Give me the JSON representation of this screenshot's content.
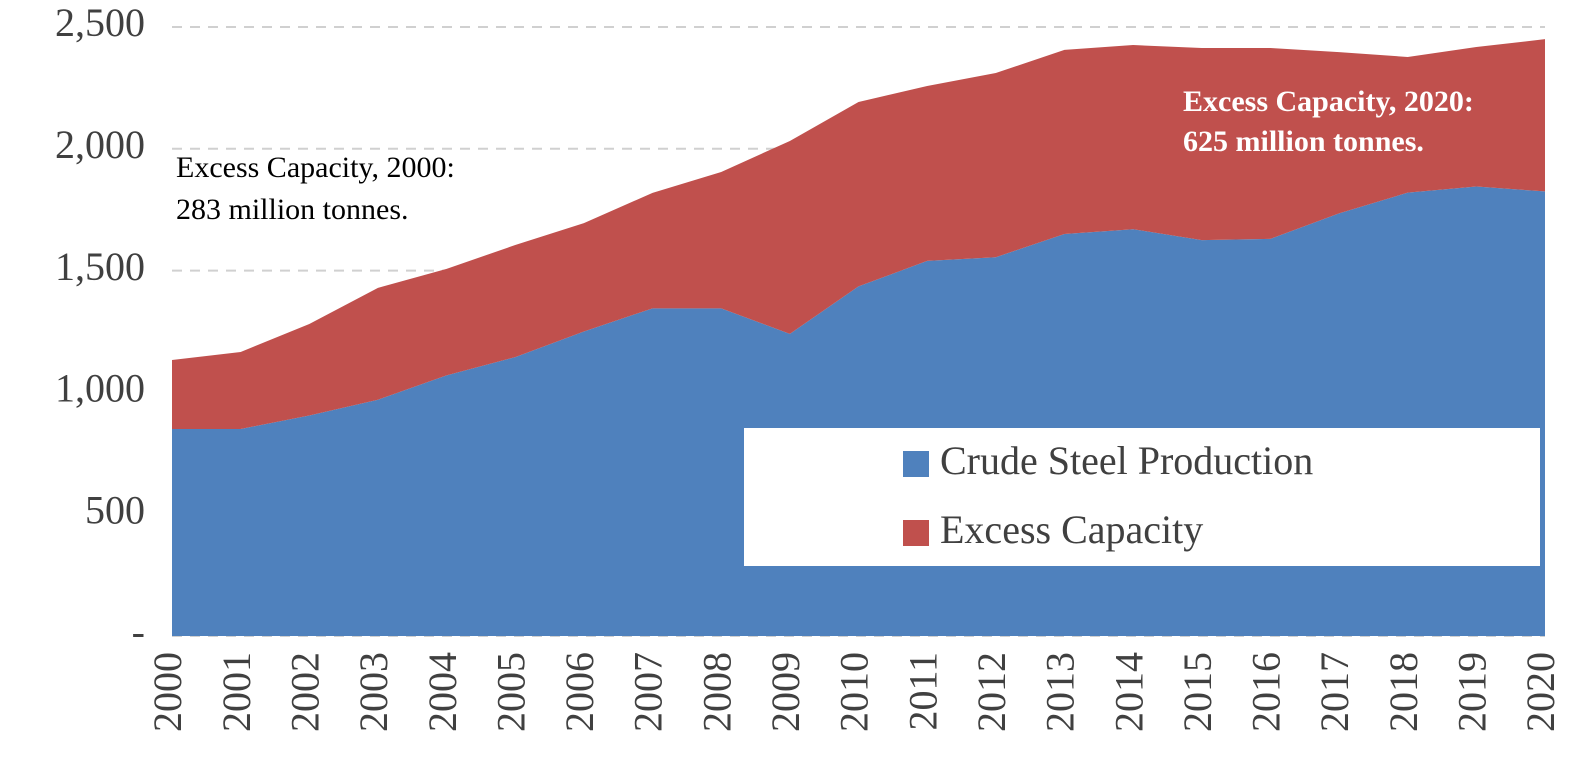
{
  "chart_data": {
    "type": "stacked_area",
    "categories": [
      "2000",
      "2001",
      "2002",
      "2003",
      "2004",
      "2005",
      "2006",
      "2007",
      "2008",
      "2009",
      "2010",
      "2011",
      "2012",
      "2013",
      "2014",
      "2015",
      "2016",
      "2017",
      "2018",
      "2019",
      "2020"
    ],
    "series": [
      {
        "name": "Crude Steel Production",
        "color": "#4f81bd",
        "values": [
          850,
          850,
          905,
          970,
          1070,
          1145,
          1250,
          1345,
          1345,
          1240,
          1435,
          1540,
          1555,
          1650,
          1670,
          1625,
          1630,
          1735,
          1820,
          1845,
          1825
        ]
      },
      {
        "name": "Excess Capacity",
        "color": "#c0504d",
        "values": [
          283,
          316,
          376,
          459,
          437,
          460,
          445,
          474,
          560,
          792,
          757,
          718,
          756,
          756,
          756,
          789,
          784,
          662,
          557,
          573,
          625
        ]
      }
    ],
    "ylim": [
      0,
      2500
    ],
    "yticks": [
      {
        "value": 0,
        "label": "-"
      },
      500,
      {
        "value": 1000,
        "label": "1,000"
      },
      {
        "value": 1500,
        "label": "1,500"
      },
      {
        "value": 2000,
        "label": "2,000"
      },
      {
        "value": 2500,
        "label": "2,500"
      }
    ],
    "grid": true,
    "annotations": [
      {
        "lines": [
          "Excess Capacity, 2000:",
          "283 million tonnes."
        ]
      },
      {
        "lines": [
          "Excess Capacity, 2020:",
          "625 million tonnes."
        ]
      }
    ]
  }
}
